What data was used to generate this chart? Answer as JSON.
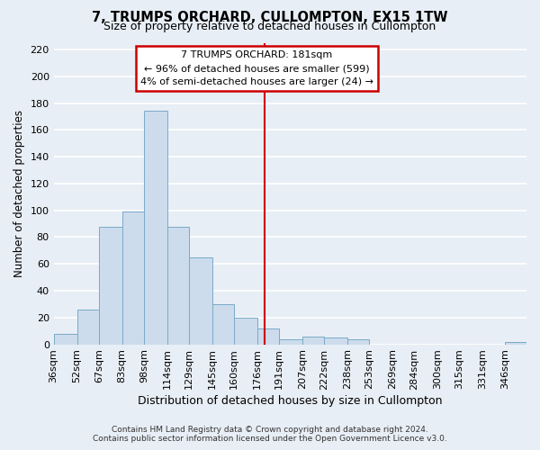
{
  "title": "7, TRUMPS ORCHARD, CULLOMPTON, EX15 1TW",
  "subtitle": "Size of property relative to detached houses in Cullompton",
  "xlabel": "Distribution of detached houses by size in Cullompton",
  "ylabel": "Number of detached properties",
  "footer_line1": "Contains HM Land Registry data © Crown copyright and database right 2024.",
  "footer_line2": "Contains public sector information licensed under the Open Government Licence v3.0.",
  "bin_labels": [
    "36sqm",
    "52sqm",
    "67sqm",
    "83sqm",
    "98sqm",
    "114sqm",
    "129sqm",
    "145sqm",
    "160sqm",
    "176sqm",
    "191sqm",
    "207sqm",
    "222sqm",
    "238sqm",
    "253sqm",
    "269sqm",
    "284sqm",
    "300sqm",
    "315sqm",
    "331sqm",
    "346sqm"
  ],
  "bin_left_edges": [
    36,
    52,
    67,
    83,
    98,
    114,
    129,
    145,
    160,
    176,
    191,
    207,
    222,
    238,
    253,
    269,
    284,
    300,
    315,
    331,
    346
  ],
  "bar_heights": [
    8,
    26,
    88,
    99,
    174,
    88,
    65,
    30,
    20,
    12,
    4,
    6,
    5,
    4,
    0,
    0,
    0,
    0,
    0,
    0,
    2
  ],
  "bar_color": "#ccdcec",
  "bar_edge_color": "#7aaac8",
  "vline_x": 181,
  "vline_color": "#cc0000",
  "ylim": [
    0,
    225
  ],
  "yticks": [
    0,
    20,
    40,
    60,
    80,
    100,
    120,
    140,
    160,
    180,
    200,
    220
  ],
  "annotation_title": "7 TRUMPS ORCHARD: 181sqm",
  "annotation_line1": "← 96% of detached houses are smaller (599)",
  "annotation_line2": "4% of semi-detached houses are larger (24) →",
  "annotation_box_edgecolor": "#cc0000",
  "bg_color": "#e8eef5",
  "grid_color": "#ffffff",
  "title_fontsize": 10.5,
  "subtitle_fontsize": 9,
  "ylabel_fontsize": 8.5,
  "xlabel_fontsize": 9,
  "tick_fontsize": 8,
  "annotation_fontsize": 8,
  "footer_fontsize": 6.5
}
